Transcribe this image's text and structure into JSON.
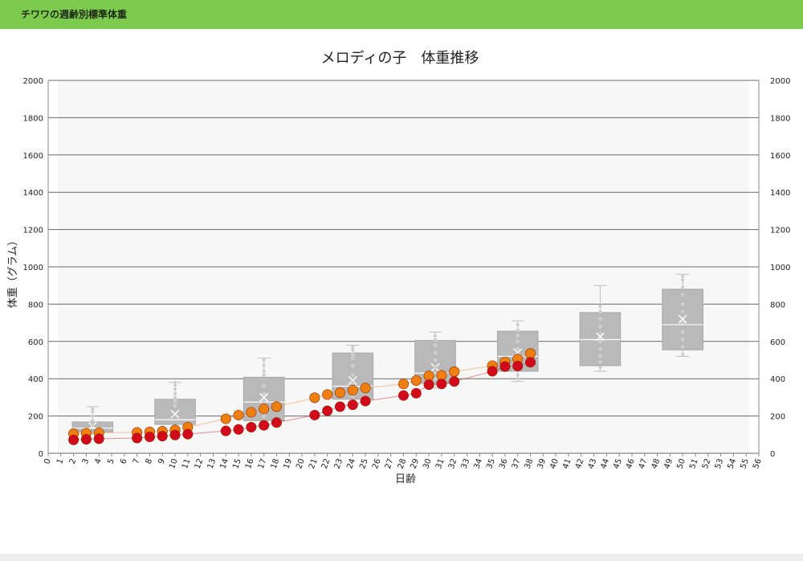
{
  "header": {
    "title": "チワワの週齢別標準体重"
  },
  "chart_data": {
    "type": "box+scatter",
    "title": "メロディの子　体重推移",
    "xlabel": "日齢",
    "ylabel": "体重（グラム）",
    "xlim": [
      0,
      56
    ],
    "ylim": [
      0,
      2000
    ],
    "x_ticks": [
      0,
      1,
      2,
      3,
      4,
      5,
      6,
      7,
      8,
      9,
      10,
      11,
      12,
      13,
      14,
      15,
      16,
      17,
      18,
      19,
      20,
      21,
      22,
      23,
      24,
      25,
      26,
      27,
      28,
      29,
      30,
      31,
      32,
      33,
      34,
      35,
      36,
      37,
      38,
      39,
      40,
      41,
      42,
      43,
      44,
      45,
      46,
      47,
      48,
      49,
      50,
      51,
      52,
      53,
      54,
      55,
      56
    ],
    "y_ticks": [
      0,
      200,
      400,
      600,
      800,
      1000,
      1200,
      1400,
      1600,
      1800,
      2000
    ],
    "grid": true,
    "boxes": [
      {
        "center": 3.5,
        "q1": 115,
        "median": 135,
        "q3": 168,
        "mean": 145,
        "whisker_low": 105,
        "whisker_high": 250,
        "outliers": [
          150,
          175,
          200,
          225,
          240
        ]
      },
      {
        "center": 10,
        "q1": 155,
        "median": 180,
        "q3": 290,
        "mean": 210,
        "whisker_low": 120,
        "whisker_high": 380,
        "outliers": [
          255,
          280,
          300,
          320,
          345,
          365,
          380
        ]
      },
      {
        "center": 17,
        "q1": 175,
        "median": 275,
        "q3": 408,
        "mean": 300,
        "whisker_low": 150,
        "whisker_high": 510,
        "outliers": [
          200,
          240,
          280,
          320,
          360,
          420,
          440,
          470,
          500
        ]
      },
      {
        "center": 24,
        "q1": 290,
        "median": 360,
        "q3": 538,
        "mean": 390,
        "whisker_low": 260,
        "whisker_high": 580,
        "outliers": [
          310,
          340,
          380,
          420,
          470,
          510,
          530,
          555,
          570
        ]
      },
      {
        "center": 30.5,
        "q1": 375,
        "median": 430,
        "q3": 605,
        "mean": 460,
        "whisker_low": 350,
        "whisker_high": 650,
        "outliers": [
          400,
          430,
          460,
          500,
          540,
          580,
          610,
          630
        ]
      },
      {
        "center": 37,
        "q1": 440,
        "median": 520,
        "q3": 655,
        "mean": 540,
        "whisker_low": 385,
        "whisker_high": 710,
        "outliers": [
          400,
          420,
          450,
          480,
          530,
          560,
          600,
          630,
          660,
          690
        ]
      },
      {
        "center": 43.5,
        "q1": 470,
        "median": 610,
        "q3": 755,
        "mean": 625,
        "whisker_low": 440,
        "whisker_high": 900,
        "outliers": [
          460,
          490,
          520,
          560,
          600,
          640,
          680,
          720,
          760,
          790
        ]
      },
      {
        "center": 50,
        "q1": 555,
        "median": 690,
        "q3": 880,
        "mean": 720,
        "whisker_low": 520,
        "whisker_high": 960,
        "outliers": [
          530,
          570,
          610,
          650,
          700,
          760,
          800,
          850,
          890,
          930,
          950
        ]
      }
    ],
    "series": [
      {
        "color": "#f07f12",
        "x": [
          2,
          3,
          4,
          7,
          8,
          9,
          10,
          11,
          14,
          15,
          16,
          17,
          18,
          21,
          22,
          23,
          24,
          25,
          28,
          29,
          30,
          31,
          32,
          35,
          36,
          37,
          38
        ],
        "y": [
          105,
          108,
          110,
          112,
          115,
          118,
          125,
          140,
          185,
          205,
          220,
          238,
          250,
          298,
          315,
          325,
          338,
          350,
          372,
          390,
          415,
          418,
          438,
          470,
          490,
          505,
          535
        ]
      },
      {
        "color": "#d20a1c",
        "x": [
          2,
          3,
          4,
          7,
          8,
          9,
          10,
          11,
          14,
          15,
          16,
          17,
          18,
          21,
          22,
          23,
          24,
          25,
          28,
          29,
          30,
          31,
          32,
          35,
          36,
          37,
          38
        ],
        "y": [
          72,
          75,
          78,
          82,
          88,
          92,
          98,
          103,
          120,
          128,
          140,
          150,
          165,
          205,
          228,
          250,
          260,
          280,
          310,
          322,
          368,
          372,
          385,
          440,
          465,
          468,
          488
        ]
      }
    ]
  }
}
